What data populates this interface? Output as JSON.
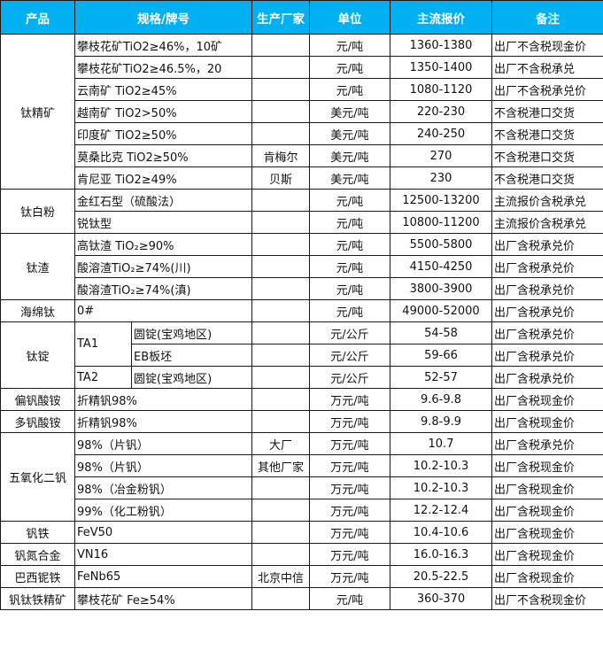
{
  "header": {
    "product": "产品",
    "spec": "规格/牌号",
    "maker": "生产厂家",
    "unit": "单位",
    "price": "主流报价",
    "note": "备注"
  },
  "colors": {
    "header_bg": "#00B0F0",
    "header_text": "#FFFFFF"
  },
  "groups": [
    {
      "product": "钛精矿",
      "rows": [
        {
          "spec": "攀枝花矿TiO2≥46%，10矿",
          "maker": "",
          "unit": "元/吨",
          "price": "1360-1380",
          "note": "出厂不含税现金价"
        },
        {
          "spec": "攀枝花矿TiO2≥46.5%，20",
          "maker": "",
          "unit": "元/吨",
          "price": "1350-1400",
          "note": "出厂不含税承兑"
        },
        {
          "spec": "云南矿 TiO2≥45%",
          "maker": "",
          "unit": "元/吨",
          "price": "1080-1120",
          "note": "出厂不含税承兑价"
        },
        {
          "spec": "越南矿 TiO2>50%",
          "maker": "",
          "unit": "美元/吨",
          "price": "220-230",
          "note": "不含税港口交货"
        },
        {
          "spec": "印度矿 TiO2≥50%",
          "maker": "",
          "unit": "美元/吨",
          "price": "240-250",
          "note": "不含税港口交货"
        },
        {
          "spec": "莫桑比克 TiO2≥50%",
          "maker": "肯梅尔",
          "unit": "美元/吨",
          "price": "270",
          "note": "不含税港口交货"
        },
        {
          "spec": "肯尼亚 TiO2≥49%",
          "maker": "贝斯",
          "unit": "美元/吨",
          "price": "230",
          "note": "不含税港口交货"
        }
      ]
    },
    {
      "product": "钛白粉",
      "rows": [
        {
          "spec": "金红石型（硫酸法）",
          "maker": "",
          "unit": "元/吨",
          "price": "12500-13200",
          "note": "主流报价含税承兑"
        },
        {
          "spec": "锐钛型",
          "maker": "",
          "unit": "元/吨",
          "price": "10800-11200",
          "note": "主流报价含税承兑"
        }
      ]
    },
    {
      "product": "钛渣",
      "rows": [
        {
          "spec": "高钛渣 TiO₂≥90%",
          "maker": "",
          "unit": "元/吨",
          "price": "5500-5800",
          "note": "出厂含税承兑价"
        },
        {
          "spec": "酸溶渣TiO₂≥74%(川)",
          "maker": "",
          "unit": "元/吨",
          "price": "4150-4250",
          "note": "出厂含税承兑价"
        },
        {
          "spec": "酸溶渣TiO₂≥74%(滇)",
          "maker": "",
          "unit": "元/吨",
          "price": "3800-3900",
          "note": "出厂含税承兑价"
        }
      ]
    },
    {
      "product": "海绵钛",
      "rows": [
        {
          "spec": "0#",
          "maker": "",
          "unit": "元/吨",
          "price": "49000-52000",
          "note": "出厂含税承兑价"
        }
      ]
    },
    {
      "product": "钛锭",
      "grades": [
        {
          "grade": "TA1",
          "rows": [
            {
              "spec": "圆锭(宝鸡地区)",
              "maker": "",
              "unit": "元/公斤",
              "price": "54-58",
              "note": "出厂含税承兑价"
            },
            {
              "spec": "EB板坯",
              "maker": "",
              "unit": "元/公斤",
              "price": "59-66",
              "note": "出厂含税承兑价"
            }
          ]
        },
        {
          "grade": "TA2",
          "rows": [
            {
              "spec": "圆锭(宝鸡地区)",
              "maker": "",
              "unit": "元/公斤",
              "price": "52-57",
              "note": "出厂含税承兑价"
            }
          ]
        }
      ]
    },
    {
      "product": "偏钒酸铵",
      "rows": [
        {
          "spec": "折精钒98%",
          "maker": "",
          "unit": "万元/吨",
          "price": "9.6-9.8",
          "note": "出厂含税现金价"
        }
      ]
    },
    {
      "product": "多钒酸铵",
      "rows": [
        {
          "spec": "折精钒98%",
          "maker": "",
          "unit": "万元/吨",
          "price": "9.8-9.9",
          "note": "出厂含税现金价"
        }
      ]
    },
    {
      "product": "五氧化二钒",
      "rows": [
        {
          "spec": "98%（片钒）",
          "maker": "大厂",
          "unit": "万元/吨",
          "price": "10.7",
          "note": "出厂含税承兑价"
        },
        {
          "spec": "98%（片钒）",
          "maker": "其他厂家",
          "unit": "万元/吨",
          "price": "10.2-10.3",
          "note": "出厂含税现金价"
        },
        {
          "spec": "98%（冶金粉钒）",
          "maker": "",
          "unit": "万元/吨",
          "price": "10.2-10.3",
          "note": "出厂含税现金价"
        },
        {
          "spec": "99%（化工粉钒）",
          "maker": "",
          "unit": "万元/吨",
          "price": "12.2-12.4",
          "note": "出厂含税现金价"
        }
      ]
    },
    {
      "product": "钒铁",
      "rows": [
        {
          "spec": "FeV50",
          "maker": "",
          "unit": "万元/吨",
          "price": "10.4-10.6",
          "note": "出厂含税现金价"
        }
      ]
    },
    {
      "product": "钒氮合金",
      "rows": [
        {
          "spec": "VN16",
          "maker": "",
          "unit": "万元/吨",
          "price": "16.0-16.3",
          "note": "出厂含税现金价"
        }
      ]
    },
    {
      "product": "巴西铌铁",
      "rows": [
        {
          "spec": "FeNb65",
          "maker": "北京中信",
          "unit": "万元/吨",
          "price": "20.5-22.5",
          "note": "出厂含税现金价"
        }
      ]
    },
    {
      "product": "钒钛铁精矿",
      "rows": [
        {
          "spec": "攀枝花矿 Fe≥54%",
          "maker": "",
          "unit": "元/吨",
          "price": "360-370",
          "note": "出厂不含税现金价"
        }
      ]
    }
  ]
}
